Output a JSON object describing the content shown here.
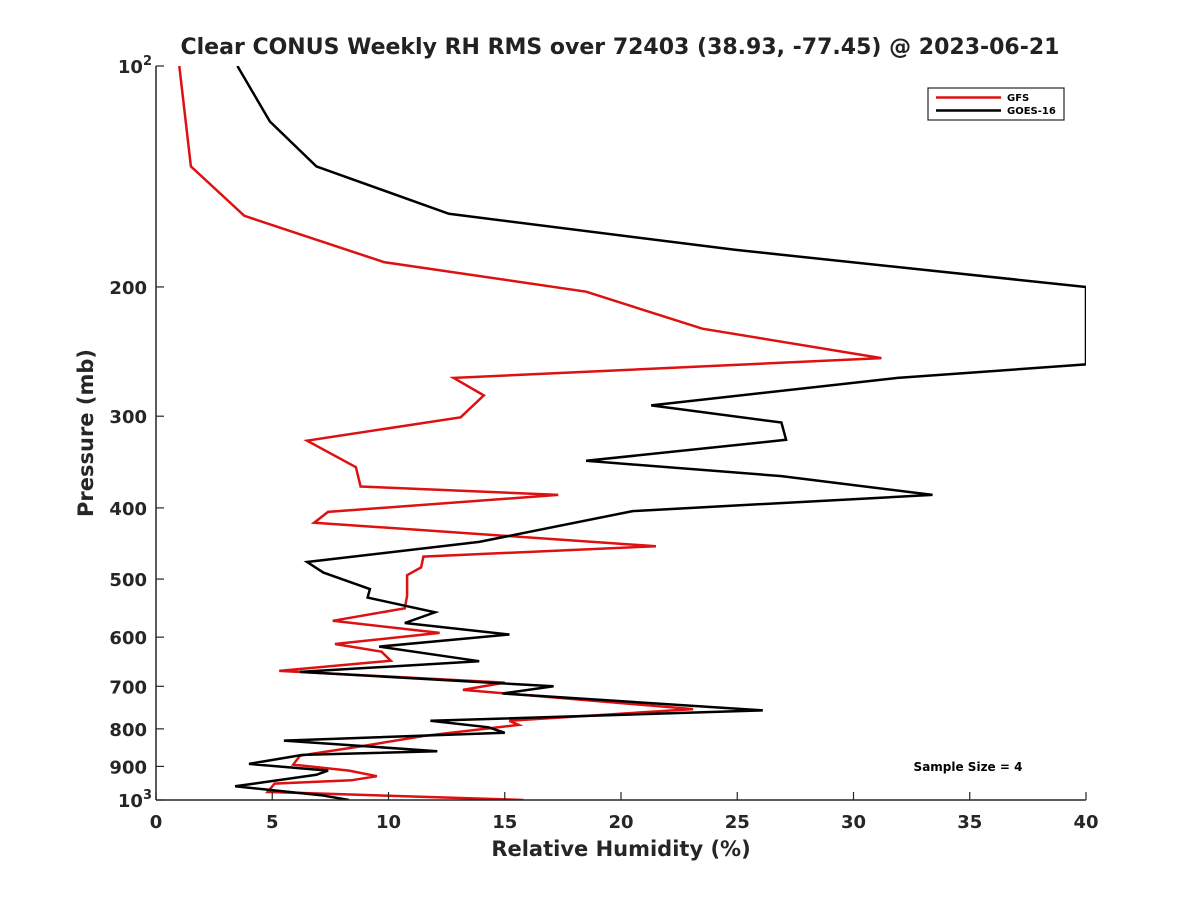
{
  "chart_data": {
    "type": "line",
    "title": "Clear CONUS Weekly RH RMS over 72403 (38.93, -77.45) @ 2023-06-21",
    "xlabel": "Relative Humidity (%)",
    "ylabel": "Pressure (mb)",
    "xlim": [
      0,
      40
    ],
    "ylim": [
      100,
      1000
    ],
    "y_scale": "log",
    "y_reversed": true,
    "grid": false,
    "legend_position": "top-right",
    "x_ticks": [
      0,
      5,
      10,
      15,
      20,
      25,
      30,
      35,
      40
    ],
    "x_tick_labels": [
      "0",
      "5",
      "10",
      "15",
      "20",
      "25",
      "30",
      "35",
      "40"
    ],
    "y_ticks": [
      100,
      200,
      300,
      400,
      500,
      600,
      700,
      800,
      900,
      1000
    ],
    "y_tick_labels": [
      "10^2",
      "200",
      "300",
      "400",
      "500",
      "600",
      "700",
      "800",
      "900",
      "10^3"
    ],
    "annotation": "Sample Size = 4",
    "series": [
      {
        "name": "GFS",
        "color": "#dd1111",
        "points": [
          [
            1.0,
            100
          ],
          [
            1.5,
            137
          ],
          [
            3.8,
            160
          ],
          [
            9.8,
            185
          ],
          [
            18.5,
            203
          ],
          [
            23.5,
            228
          ],
          [
            31.2,
            250
          ],
          [
            12.8,
            266
          ],
          [
            14.1,
            281
          ],
          [
            13.1,
            301
          ],
          [
            6.5,
            324
          ],
          [
            8.6,
            352
          ],
          [
            8.8,
            374
          ],
          [
            17.3,
            384
          ],
          [
            7.4,
            405
          ],
          [
            6.8,
            419
          ],
          [
            21.5,
            451
          ],
          [
            11.5,
            466
          ],
          [
            11.4,
            482
          ],
          [
            10.8,
            494
          ],
          [
            10.8,
            527
          ],
          [
            10.7,
            548
          ],
          [
            7.6,
            570
          ],
          [
            12.2,
            592
          ],
          [
            7.7,
            613
          ],
          [
            9.7,
            628
          ],
          [
            10.1,
            646
          ],
          [
            5.3,
            667
          ],
          [
            15.0,
            692
          ],
          [
            13.2,
            708
          ],
          [
            16.0,
            720
          ],
          [
            23.1,
            752
          ],
          [
            15.2,
            780
          ],
          [
            15.6,
            790
          ],
          [
            11.5,
            818
          ],
          [
            9.0,
            843
          ],
          [
            6.2,
            870
          ],
          [
            5.9,
            895
          ],
          [
            8.3,
            912
          ],
          [
            9.5,
            928
          ],
          [
            8.4,
            940
          ],
          [
            5.1,
            950
          ],
          [
            4.8,
            975
          ],
          [
            15.8,
            1000
          ]
        ]
      },
      {
        "name": "GOES-16",
        "color": "#000000",
        "points": [
          [
            3.5,
            100
          ],
          [
            4.9,
            119
          ],
          [
            6.9,
            137
          ],
          [
            12.6,
            159
          ],
          [
            24.9,
            178
          ],
          [
            40.0,
            200
          ],
          [
            40.0,
            255
          ],
          [
            31.9,
            266
          ],
          [
            21.3,
            290
          ],
          [
            26.9,
            306
          ],
          [
            27.1,
            323
          ],
          [
            18.5,
            345
          ],
          [
            26.9,
            362
          ],
          [
            33.4,
            384
          ],
          [
            20.5,
            404
          ],
          [
            13.9,
            445
          ],
          [
            6.5,
            474
          ],
          [
            7.2,
            490
          ],
          [
            9.2,
            516
          ],
          [
            9.1,
            530
          ],
          [
            12.0,
            555
          ],
          [
            10.7,
            574
          ],
          [
            15.2,
            595
          ],
          [
            9.6,
            618
          ],
          [
            13.9,
            647
          ],
          [
            6.2,
            669
          ],
          [
            17.1,
            700
          ],
          [
            14.9,
            716
          ],
          [
            26.1,
            755
          ],
          [
            11.8,
            780
          ],
          [
            14.3,
            796
          ],
          [
            15.0,
            810
          ],
          [
            5.5,
            830
          ],
          [
            12.1,
            858
          ],
          [
            6.3,
            868
          ],
          [
            4.0,
            893
          ],
          [
            7.4,
            912
          ],
          [
            6.9,
            924
          ],
          [
            3.4,
            958
          ],
          [
            7.1,
            985
          ],
          [
            8.3,
            1000
          ]
        ]
      }
    ]
  }
}
